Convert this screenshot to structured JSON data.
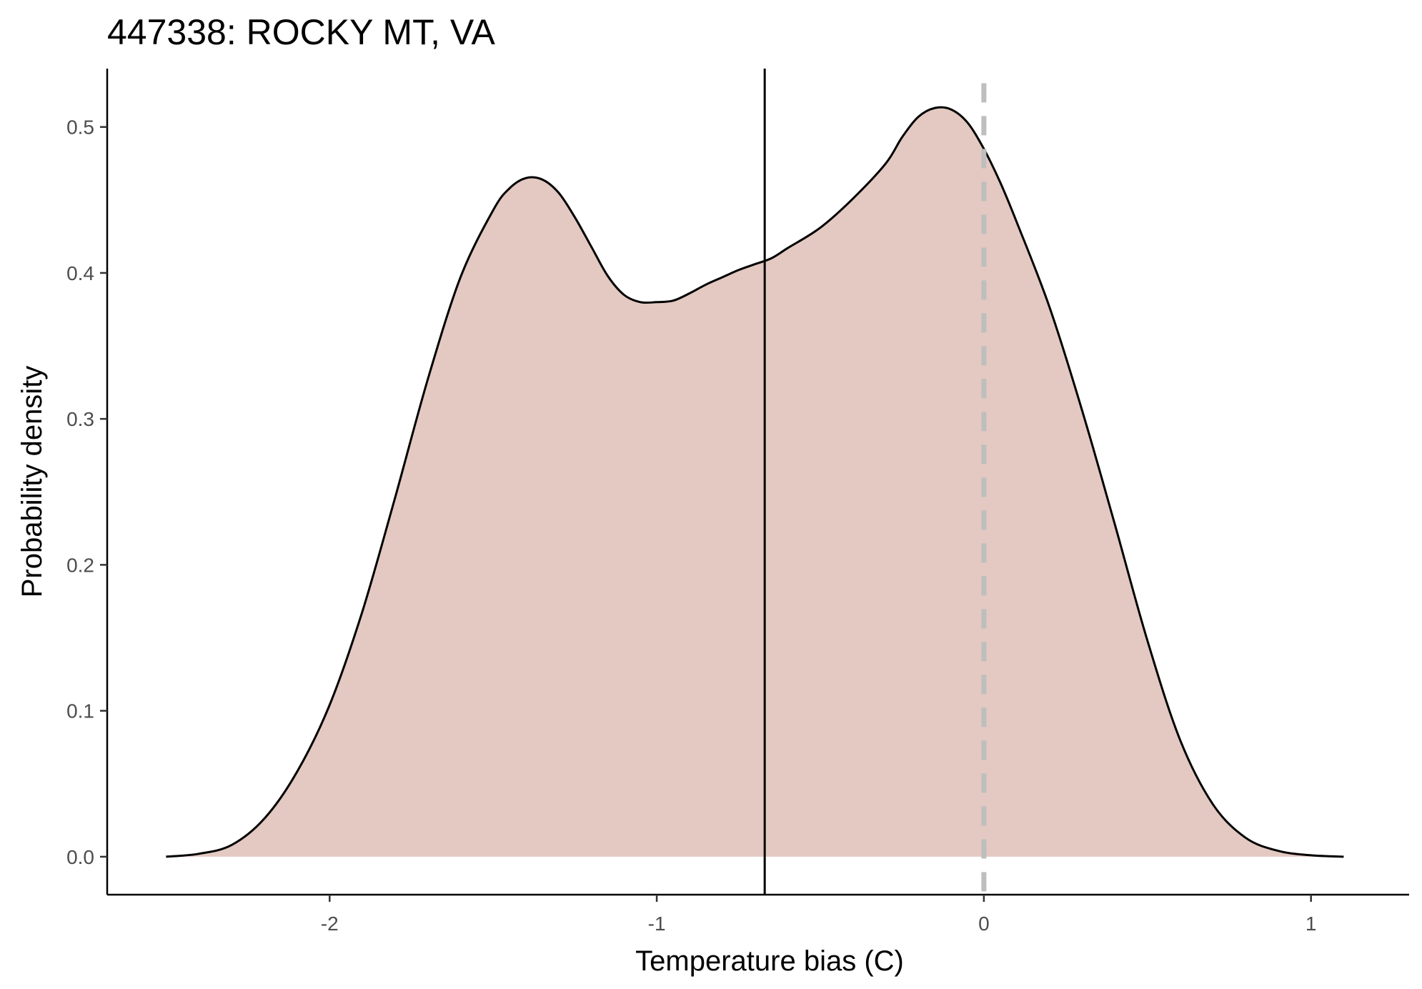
{
  "chart_data": {
    "type": "area",
    "title": "447338: ROCKY MT, VA",
    "xlabel": "Temperature bias (C)",
    "ylabel": "Probability density",
    "xlim": [
      -2.68,
      1.3
    ],
    "ylim": [
      -0.026,
      0.54
    ],
    "x_ticks": [
      -2,
      -1,
      0,
      1
    ],
    "x_tick_labels": [
      "-2",
      "-1",
      "0",
      "1"
    ],
    "y_ticks": [
      0.0,
      0.1,
      0.2,
      0.3,
      0.4,
      0.5
    ],
    "y_tick_labels": [
      "0.0",
      "0.1",
      "0.2",
      "0.3",
      "0.4",
      "0.5"
    ],
    "grid": false,
    "fill_color": "#e3c9c1",
    "line_color": "#000000",
    "density": {
      "x": [
        -2.5,
        -2.4,
        -2.3,
        -2.2,
        -2.1,
        -2.0,
        -1.9,
        -1.8,
        -1.7,
        -1.6,
        -1.5,
        -1.45,
        -1.4,
        -1.35,
        -1.3,
        -1.25,
        -1.2,
        -1.15,
        -1.1,
        -1.05,
        -1.0,
        -0.95,
        -0.9,
        -0.85,
        -0.8,
        -0.75,
        -0.7,
        -0.65,
        -0.6,
        -0.5,
        -0.4,
        -0.3,
        -0.25,
        -0.2,
        -0.15,
        -0.1,
        -0.05,
        0.0,
        0.05,
        0.1,
        0.2,
        0.3,
        0.4,
        0.5,
        0.6,
        0.7,
        0.8,
        0.9,
        1.0,
        1.1
      ],
      "y": [
        0.0,
        0.002,
        0.008,
        0.026,
        0.058,
        0.104,
        0.168,
        0.246,
        0.327,
        0.397,
        0.443,
        0.458,
        0.465,
        0.464,
        0.455,
        0.438,
        0.418,
        0.398,
        0.385,
        0.38,
        0.38,
        0.381,
        0.386,
        0.392,
        0.397,
        0.402,
        0.406,
        0.41,
        0.417,
        0.431,
        0.451,
        0.475,
        0.493,
        0.507,
        0.513,
        0.512,
        0.503,
        0.485,
        0.462,
        0.435,
        0.377,
        0.306,
        0.228,
        0.148,
        0.08,
        0.036,
        0.013,
        0.004,
        0.001,
        0.0
      ]
    },
    "mean_line": {
      "x": -0.67,
      "color": "#000000",
      "style": "solid"
    },
    "zero_line": {
      "x": 0.0,
      "color": "#bebebe",
      "style": "dashed"
    }
  }
}
